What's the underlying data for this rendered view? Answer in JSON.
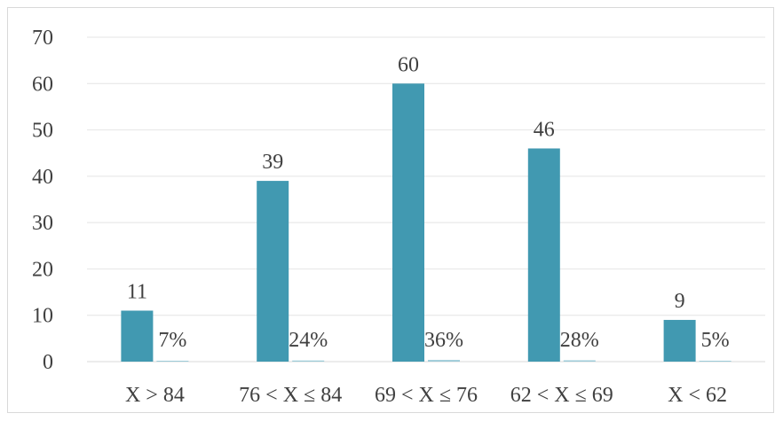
{
  "chart_data": {
    "type": "bar",
    "categories": [
      "X > 84",
      "76 < X ≤ 84",
      "69 < X ≤ 76",
      "62 < X ≤ 69",
      "X < 62"
    ],
    "series": [
      {
        "values": [
          11,
          39,
          60,
          46,
          9
        ],
        "labels": [
          "11",
          "39",
          "60",
          "46",
          "9"
        ],
        "color": "#4199b1"
      },
      {
        "values": [
          0.07,
          0.24,
          0.36,
          0.28,
          0.05
        ],
        "labels": [
          "7%",
          "24%",
          "36%",
          "28%",
          "5%"
        ],
        "color": "#9ccbd8"
      }
    ],
    "yticks": [
      "0",
      "10",
      "20",
      "30",
      "40",
      "50",
      "60",
      "70"
    ],
    "ylim": [
      0,
      70
    ],
    "grid": true,
    "title": "",
    "xlabel": "",
    "ylabel": ""
  }
}
